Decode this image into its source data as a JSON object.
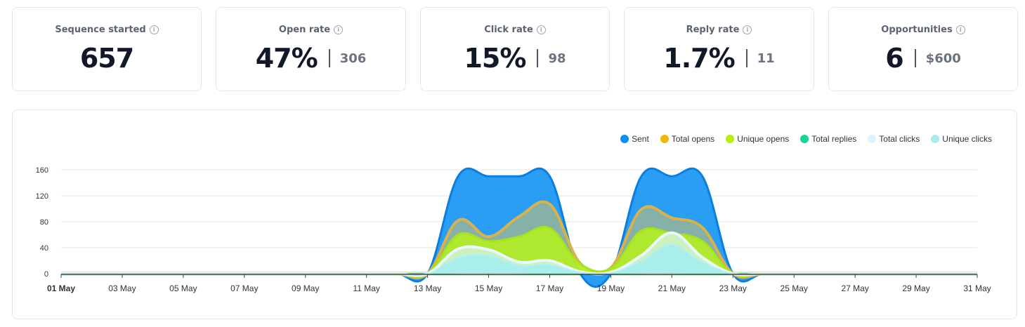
{
  "stats": [
    {
      "title": "Sequence started",
      "value": "657",
      "sub": ""
    },
    {
      "title": "Open rate",
      "value": "47%",
      "sub": "306"
    },
    {
      "title": "Click rate",
      "value": "15%",
      "sub": "98"
    },
    {
      "title": "Reply rate",
      "value": "1.7%",
      "sub": "11"
    },
    {
      "title": "Opportunities",
      "value": "6",
      "sub": "$600"
    }
  ],
  "info_icon_glyph": "i",
  "chart_data": {
    "type": "area",
    "legend_position": "top-right",
    "grid": true,
    "ylim": [
      0,
      160
    ],
    "yticks": [
      "0",
      "40",
      "80",
      "120",
      "160"
    ],
    "xticks": [
      "01 May",
      "03 May",
      "05 May",
      "07 May",
      "09 May",
      "11 May",
      "13 May",
      "15 May",
      "17 May",
      "19 May",
      "21 May",
      "23 May",
      "25 May",
      "27 May",
      "29 May",
      "31 May"
    ],
    "x": [
      1,
      2,
      3,
      4,
      5,
      6,
      7,
      8,
      9,
      10,
      11,
      12,
      13,
      14,
      15,
      16,
      17,
      18,
      19,
      20,
      21,
      22,
      23,
      24,
      25,
      26,
      27,
      28,
      29,
      30,
      31
    ],
    "series": [
      {
        "name": "Sent",
        "color": "#0a8ef0",
        "values": [
          0,
          0,
          0,
          0,
          0,
          0,
          0,
          0,
          0,
          0,
          0,
          0,
          0,
          150,
          150,
          150,
          150,
          0,
          0,
          150,
          150,
          150,
          0,
          0,
          0,
          0,
          0,
          0,
          0,
          0,
          0
        ]
      },
      {
        "name": "Total opens",
        "color": "#f2b700",
        "values": [
          0,
          0,
          0,
          0,
          0,
          0,
          0,
          0,
          0,
          0,
          0,
          0,
          0,
          82,
          57,
          88,
          107,
          16,
          9,
          99,
          86,
          71,
          0,
          0,
          0,
          0,
          0,
          0,
          0,
          0,
          0
        ]
      },
      {
        "name": "Unique opens",
        "color": "#b5f000",
        "values": [
          0,
          0,
          0,
          0,
          0,
          0,
          0,
          0,
          0,
          0,
          0,
          0,
          0,
          60,
          50,
          57,
          70,
          15,
          8,
          66,
          62,
          50,
          0,
          0,
          0,
          0,
          0,
          0,
          0,
          0,
          0
        ]
      },
      {
        "name": "Total replies",
        "color": "#14d693",
        "values": [
          0,
          0,
          0,
          0,
          0,
          0,
          0,
          0,
          0,
          0,
          0,
          0,
          0,
          1,
          1,
          1,
          0,
          0,
          0,
          1,
          1,
          0,
          0,
          0,
          0,
          0,
          0,
          0,
          0,
          0,
          0
        ]
      },
      {
        "name": "Total clicks",
        "color": "#d9f4fb",
        "values": [
          0,
          0,
          0,
          0,
          0,
          0,
          0,
          0,
          0,
          0,
          0,
          0,
          0,
          38,
          37,
          18,
          20,
          3,
          2,
          28,
          63,
          25,
          0,
          0,
          0,
          0,
          0,
          0,
          0,
          0,
          0
        ]
      },
      {
        "name": "Unique clicks",
        "color": "#a6eded",
        "values": [
          0,
          0,
          0,
          0,
          0,
          0,
          0,
          0,
          0,
          0,
          0,
          0,
          0,
          25,
          28,
          13,
          14,
          2,
          1,
          20,
          45,
          18,
          0,
          0,
          0,
          0,
          0,
          0,
          0,
          0,
          0
        ]
      }
    ]
  }
}
